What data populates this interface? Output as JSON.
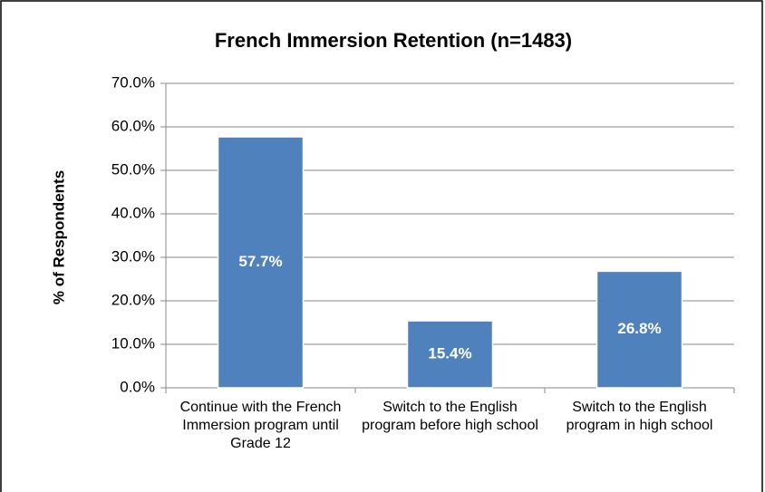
{
  "chart_data": {
    "type": "bar",
    "title": "French Immersion Retention (n=1483)",
    "ylabel": "% of Respondents",
    "categories": [
      "Continue with the French Immersion program until Grade 12",
      "Switch to the English program before high school",
      "Switch to the English program in high school"
    ],
    "values": [
      57.7,
      15.4,
      26.8
    ],
    "value_labels": [
      "57.7%",
      "15.4%",
      "26.8%"
    ],
    "color": "#4f81bd",
    "ylim": [
      0,
      70
    ],
    "yticks": [
      {
        "value": 0,
        "label": "0.0%"
      },
      {
        "value": 10,
        "label": "10.0%"
      },
      {
        "value": 20,
        "label": "20.0%"
      },
      {
        "value": 30,
        "label": "30.0%"
      },
      {
        "value": 40,
        "label": "40.0%"
      },
      {
        "value": 50,
        "label": "50.0%"
      },
      {
        "value": 60,
        "label": "60.0%"
      },
      {
        "value": 70,
        "label": "70.0%"
      }
    ],
    "grid": true
  }
}
